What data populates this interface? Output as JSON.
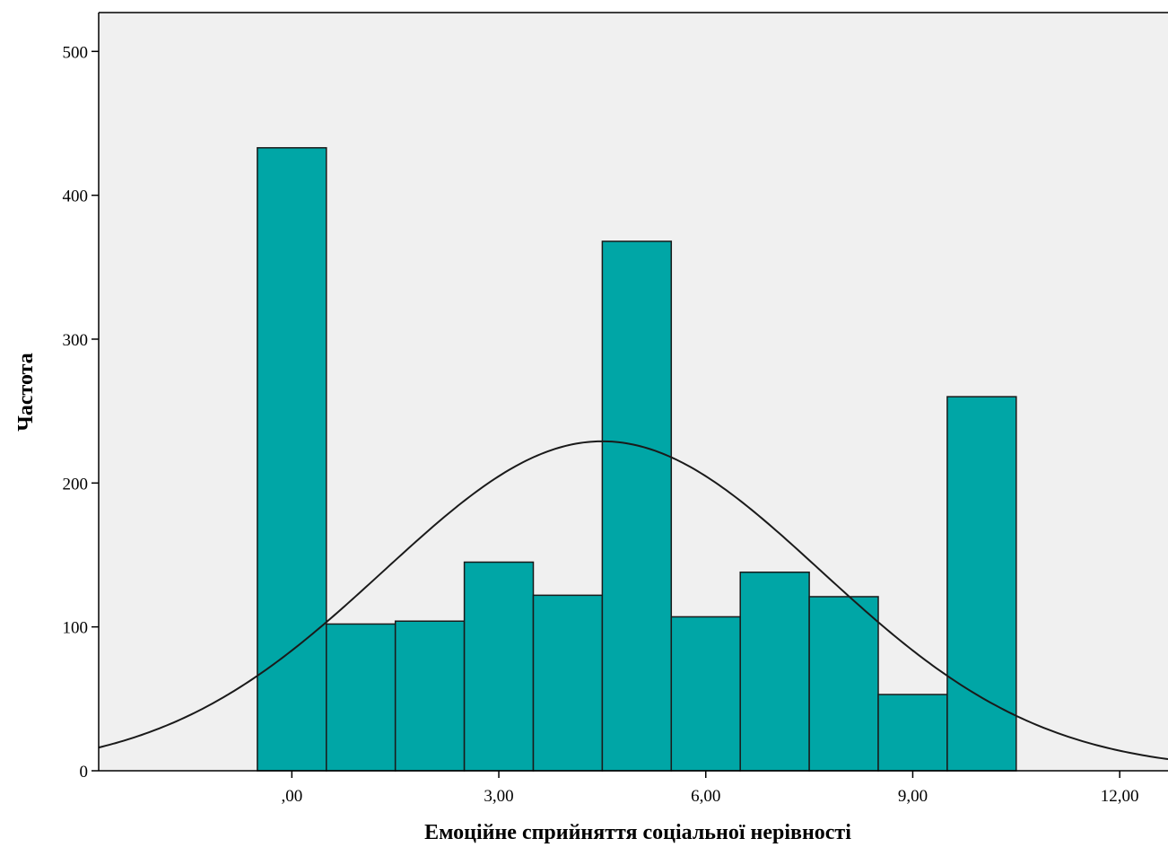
{
  "chart_data": {
    "type": "bar",
    "subtype": "histogram",
    "xlabel": "Емоційне сприйняття соціальної нерівності",
    "ylabel": "Частота",
    "xlim": [
      -2.8,
      12.7
    ],
    "ylim": [
      0,
      527
    ],
    "grid": false,
    "legend": "none",
    "bin_width": 1,
    "bins": [
      {
        "center": 0,
        "value": 433
      },
      {
        "center": 1,
        "value": 102
      },
      {
        "center": 2,
        "value": 104
      },
      {
        "center": 3,
        "value": 145
      },
      {
        "center": 4,
        "value": 122
      },
      {
        "center": 5,
        "value": 368
      },
      {
        "center": 6,
        "value": 107
      },
      {
        "center": 7,
        "value": 138
      },
      {
        "center": 8,
        "value": 121
      },
      {
        "center": 9,
        "value": 53
      },
      {
        "center": 10,
        "value": 260
      }
    ],
    "x_ticks": [
      {
        "value": 0,
        "label": ",00"
      },
      {
        "value": 3,
        "label": "3,00"
      },
      {
        "value": 6,
        "label": "6,00"
      },
      {
        "value": 9,
        "label": "9,00"
      },
      {
        "value": 12,
        "label": "12,00"
      }
    ],
    "y_ticks": [
      {
        "value": 0,
        "label": "0"
      },
      {
        "value": 100,
        "label": "100"
      },
      {
        "value": 200,
        "label": "200"
      },
      {
        "value": 300,
        "label": "300"
      },
      {
        "value": 400,
        "label": "400"
      },
      {
        "value": 500,
        "label": "500"
      }
    ],
    "normal_curve": {
      "mean": 4.5,
      "sd": 3.17,
      "peak": 229
    },
    "colors": {
      "bar_fill": "#00a6a6",
      "bar_stroke": "#1a1a1a",
      "plot_background": "#f0f0f0",
      "curve": "#1a1a1a"
    }
  }
}
